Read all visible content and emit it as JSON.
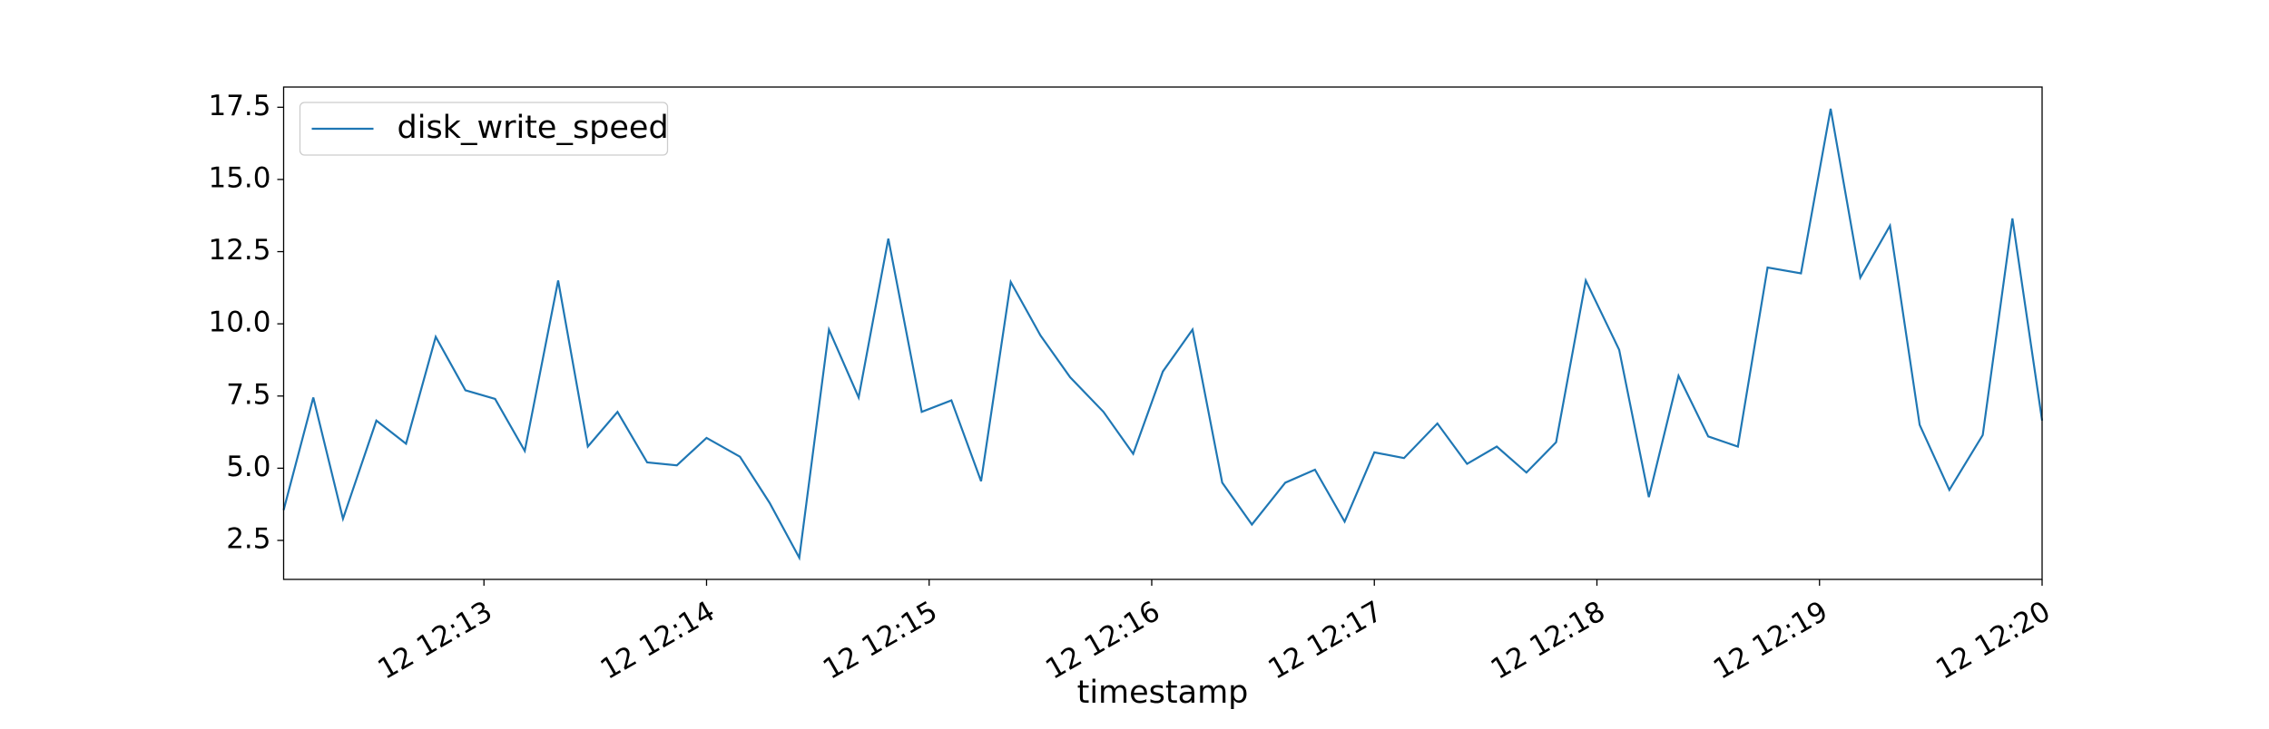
{
  "chart_data": {
    "type": "line",
    "xlabel": "timestamp",
    "x": [
      "12:12:06",
      "12:12:14",
      "12:12:22",
      "12:12:31",
      "12:12:39",
      "12:12:47",
      "12:12:55",
      "12:13:03",
      "12:13:11",
      "12:13:20",
      "12:13:28",
      "12:13:36",
      "12:13:44",
      "12:13:52",
      "12:14:00",
      "12:14:09",
      "12:14:17",
      "12:14:25",
      "12:14:33",
      "12:14:41",
      "12:14:49",
      "12:14:58",
      "12:15:06",
      "12:15:14",
      "12:15:22",
      "12:15:30",
      "12:15:38",
      "12:15:47",
      "12:15:55",
      "12:16:03",
      "12:16:11",
      "12:16:19",
      "12:16:27",
      "12:16:36",
      "12:16:44",
      "12:16:52",
      "12:17:00",
      "12:17:08",
      "12:17:17",
      "12:17:25",
      "12:17:33",
      "12:17:41",
      "12:17:49",
      "12:17:57",
      "12:18:06",
      "12:18:14",
      "12:18:22",
      "12:18:30",
      "12:18:38",
      "12:18:46",
      "12:18:55",
      "12:19:03",
      "12:19:11",
      "12:19:19",
      "12:19:27",
      "12:19:35",
      "12:19:44",
      "12:19:52",
      "12:20:00"
    ],
    "series": [
      {
        "name": "disk_write_speed",
        "color": "#1f77b4",
        "values": [
          3.55,
          7.45,
          3.25,
          6.65,
          5.85,
          9.55,
          7.7,
          7.4,
          5.6,
          11.5,
          5.75,
          6.95,
          5.2,
          5.1,
          6.05,
          5.4,
          3.8,
          1.9,
          9.8,
          7.45,
          12.95,
          6.95,
          7.35,
          4.55,
          11.45,
          9.6,
          8.15,
          6.95,
          5.5,
          8.35,
          9.8,
          4.5,
          3.05,
          4.5,
          4.95,
          3.15,
          5.55,
          5.35,
          6.55,
          5.15,
          5.75,
          4.85,
          5.9,
          11.5,
          9.1,
          4.0,
          8.2,
          6.1,
          5.75,
          11.95,
          11.75,
          17.45,
          11.6,
          13.4,
          6.5,
          4.25,
          6.15,
          13.65,
          6.65
        ]
      }
    ],
    "xlim": [
      "12:12:06",
      "12:20:00"
    ],
    "xticks": [
      {
        "value": "12:13:00",
        "label": "12 12:13"
      },
      {
        "value": "12:14:00",
        "label": "12 12:14"
      },
      {
        "value": "12:15:00",
        "label": "12 12:15"
      },
      {
        "value": "12:16:00",
        "label": "12 12:16"
      },
      {
        "value": "12:17:00",
        "label": "12 12:17"
      },
      {
        "value": "12:18:00",
        "label": "12 12:18"
      },
      {
        "value": "12:19:00",
        "label": "12 12:19"
      },
      {
        "value": "12:20:00",
        "label": "12 12:20"
      }
    ],
    "ylim": [
      1.15,
      18.2
    ],
    "yticks": [
      {
        "value": 2.5,
        "label": "2.5"
      },
      {
        "value": 5,
        "label": "5.0"
      },
      {
        "value": 7.5,
        "label": "7.5"
      },
      {
        "value": 10,
        "label": "10.0"
      },
      {
        "value": 12.5,
        "label": "12.5"
      },
      {
        "value": 15,
        "label": "15.0"
      },
      {
        "value": 17.5,
        "label": "17.5"
      }
    ],
    "legend": "upper left"
  }
}
